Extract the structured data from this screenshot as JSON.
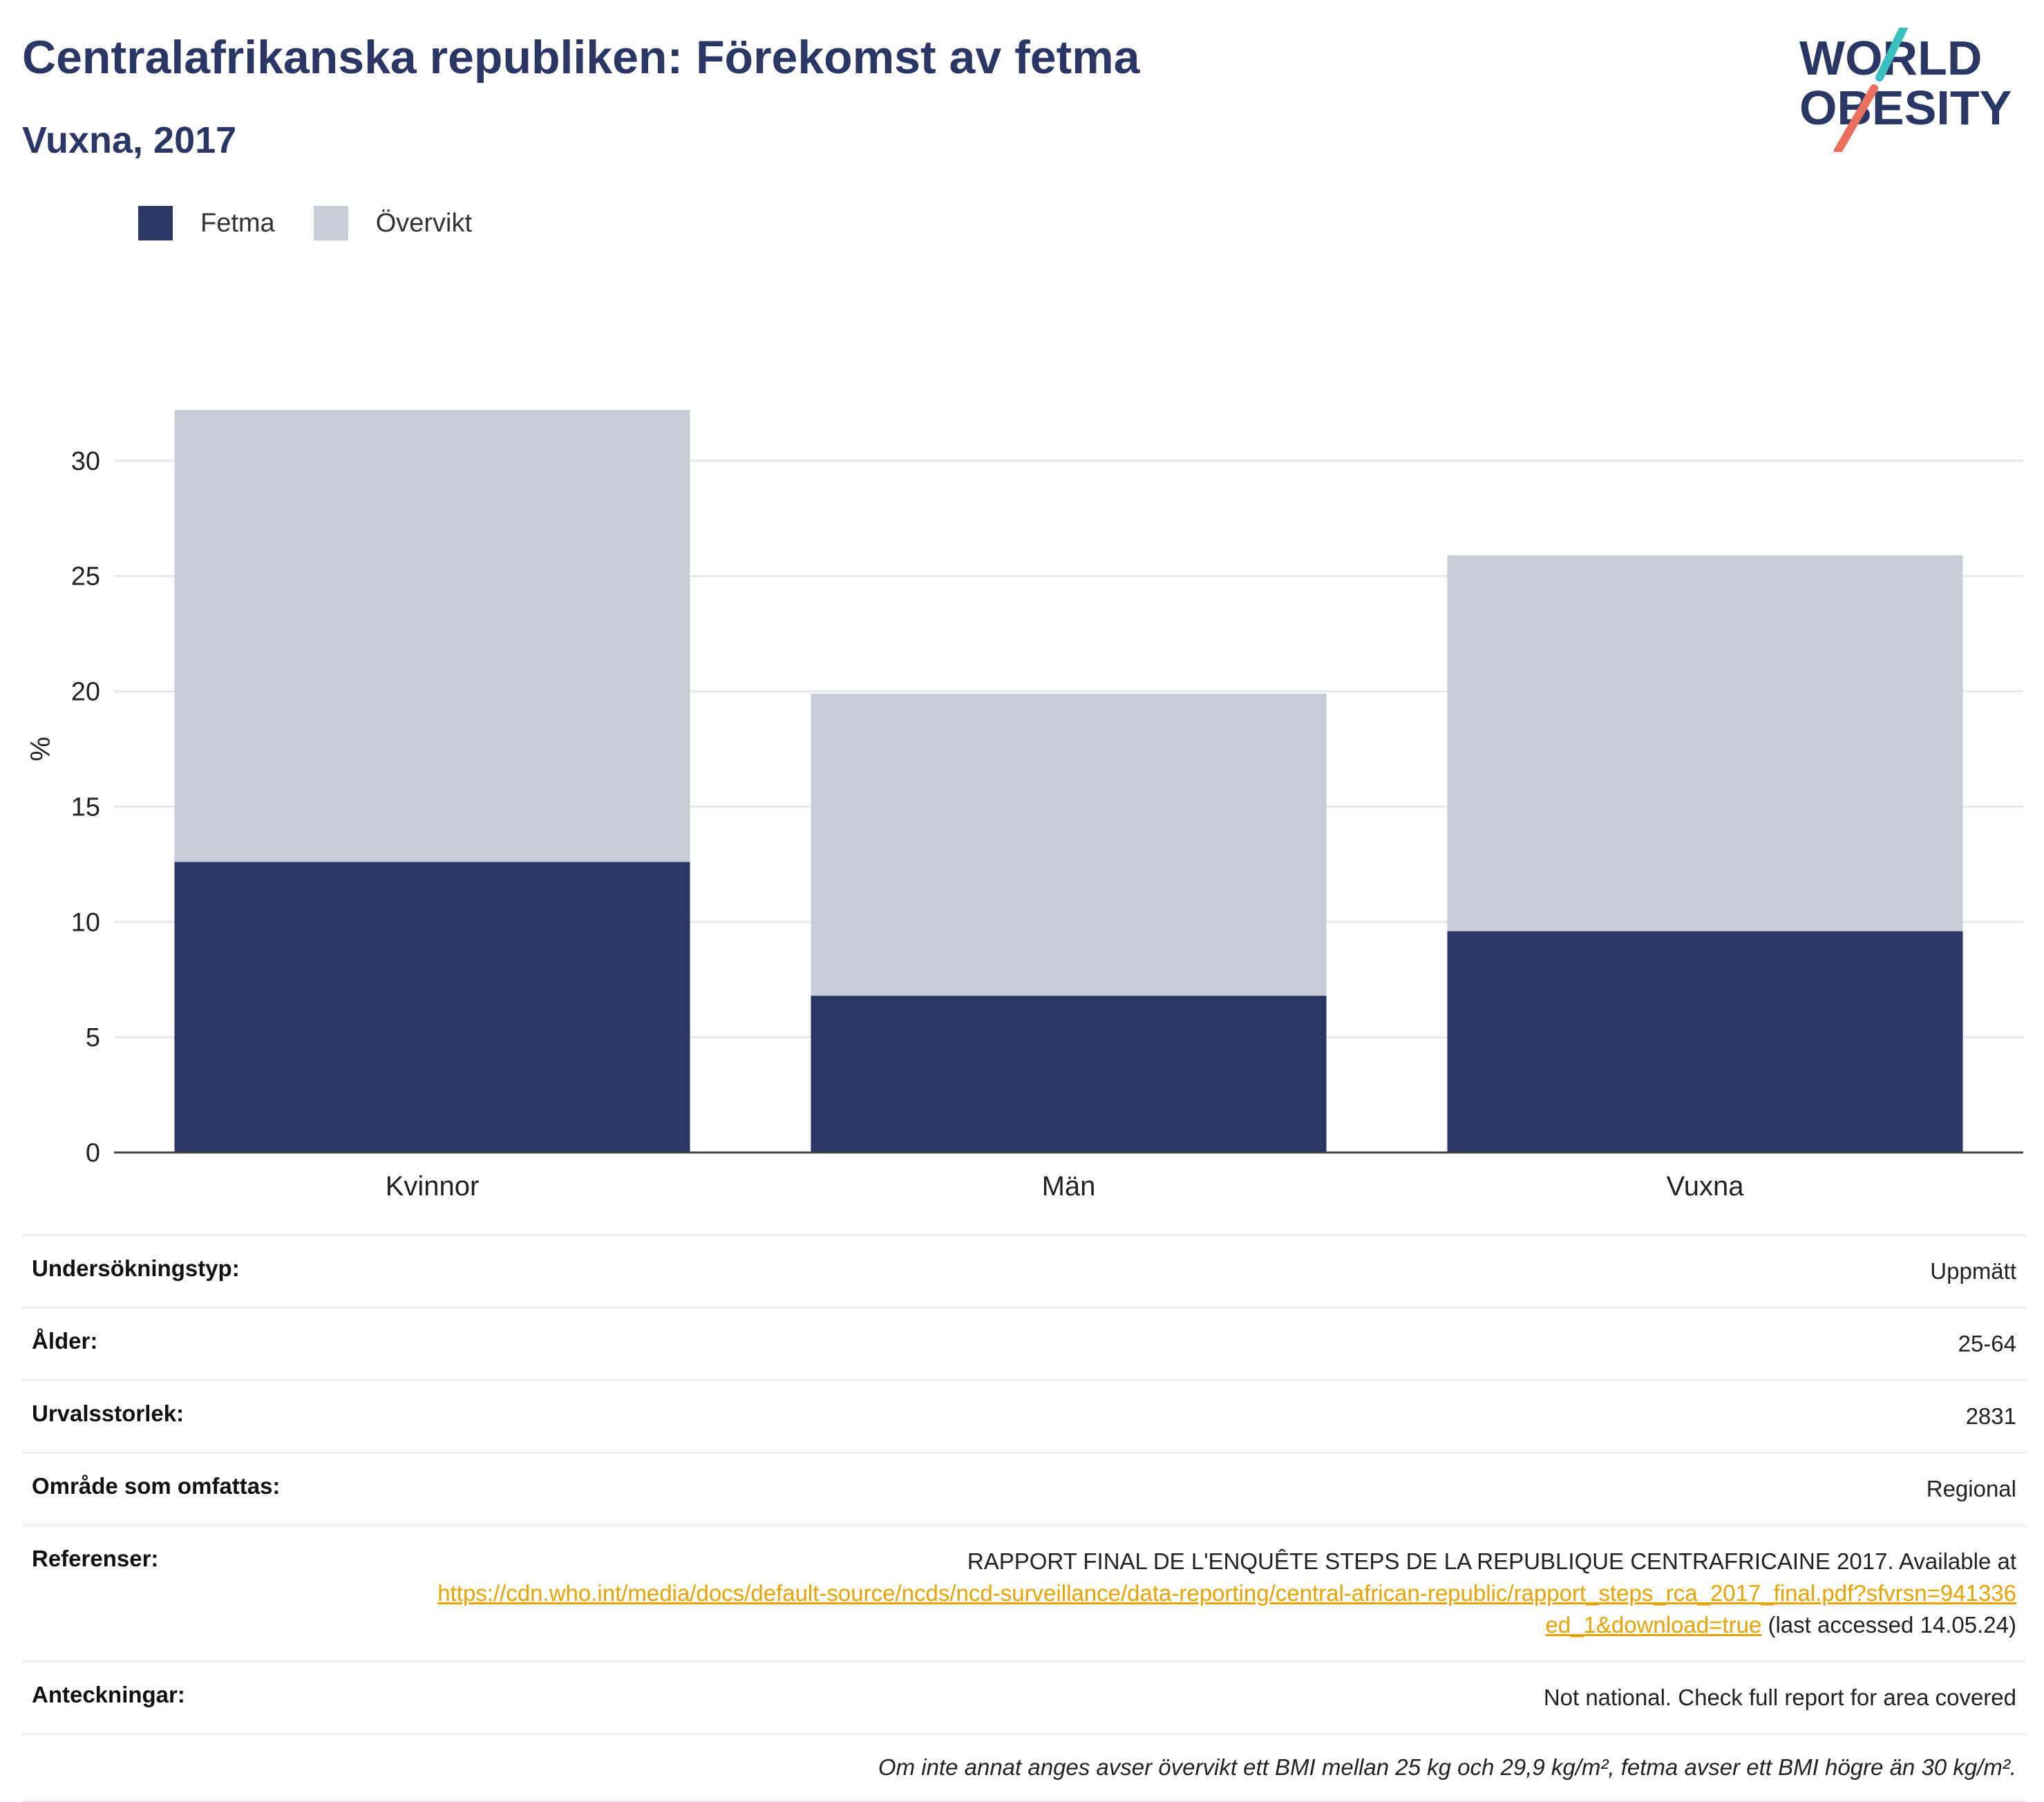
{
  "header": {
    "title": "Centralafrikanska republiken: Förekomst av fetma",
    "subtitle": "Vuxna, 2017",
    "logo_line1": "WORLD",
    "logo_line2": "OBESITY"
  },
  "colors": {
    "obesity": "#2a3764",
    "overweight": "#c9cbd6",
    "title": "#2a3764",
    "link": "#e8a300",
    "logo_teal": "#3cbfbf",
    "logo_coral": "#e8705c"
  },
  "legend": [
    {
      "label": "Fetma",
      "color": "#2a3764"
    },
    {
      "label": "Övervikt",
      "color": "#c9cbd6"
    }
  ],
  "chart_data": {
    "type": "bar",
    "stacked": true,
    "categories": [
      "Kvinnor",
      "Män",
      "Vuxna"
    ],
    "series": [
      {
        "name": "Fetma",
        "color": "#2a3764",
        "values": [
          12.6,
          6.8,
          9.6
        ]
      },
      {
        "name": "Övervikt",
        "color": "#c9cbd6",
        "values": [
          19.6,
          13.1,
          16.3
        ]
      }
    ],
    "ylabel": "%",
    "ylim": [
      0,
      35
    ],
    "yticks": [
      0,
      5,
      10,
      15,
      20,
      25,
      30
    ],
    "grid": true,
    "legend_position": "top-left"
  },
  "info": {
    "rows": [
      {
        "label": "Undersökningstyp:",
        "value": "Uppmätt"
      },
      {
        "label": "Ålder:",
        "value": "25-64"
      },
      {
        "label": "Urvalsstorlek:",
        "value": "2831"
      },
      {
        "label": "Område som omfattas:",
        "value": "Regional"
      }
    ],
    "references": {
      "label": "Referenser:",
      "text_before": "RAPPORT FINAL DE L'ENQUÊTE STEPS DE LA REPUBLIQUE CENTRAFRICAINE 2017. Available at",
      "link": "https://cdn.who.int/media/docs/default-source/ncds/ncd-surveillance/data-reporting/central-african-republic/rapport_steps_rca_2017_final.pdf?sfvrsn=941336ed_1&download=true",
      "text_after": "(last accessed 14.05.24)"
    },
    "notes": {
      "label": "Anteckningar:",
      "value": "Not national. Check full report for area covered"
    },
    "footnote": "Om inte annat anges avser övervikt ett BMI mellan 25 kg och 29,9 kg/m², fetma avser ett BMI högre än 30 kg/m²."
  }
}
